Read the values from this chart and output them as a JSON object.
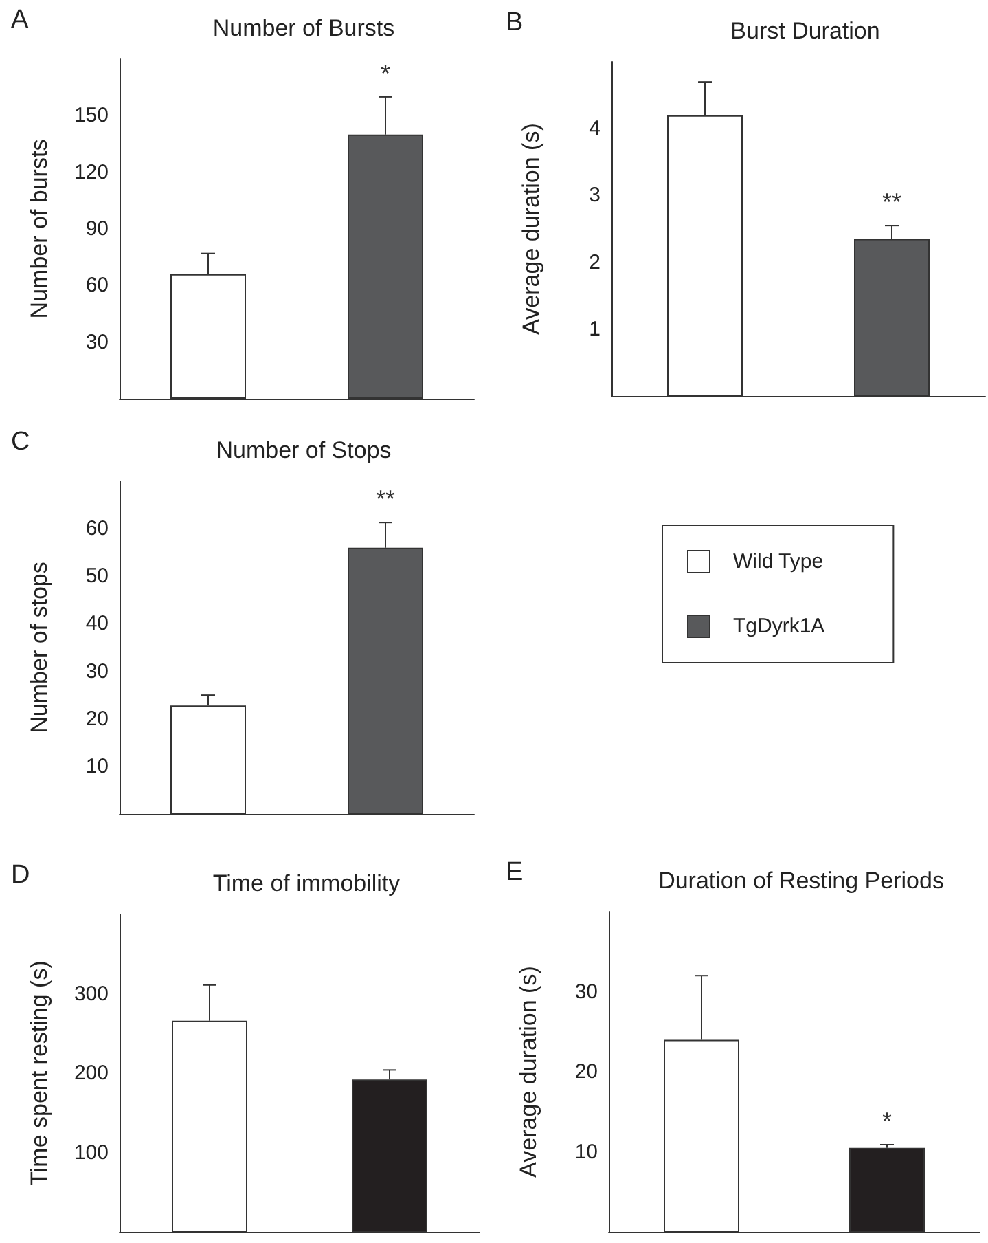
{
  "chart_data": [
    {
      "type": "bar",
      "title": "Number of Bursts",
      "ylabel": "Number of bursts",
      "annotations": [
        "A",
        "*"
      ],
      "categories": [
        null,
        null
      ],
      "values": [
        66,
        140
      ],
      "colors": [
        "#ffffff",
        "#58595b"
      ],
      "errors": [
        [
          66,
          77
        ],
        [
          140,
          160
        ]
      ],
      "ylim": [
        0,
        180
      ],
      "yticks": [
        30,
        60,
        90,
        120,
        150
      ]
    },
    {
      "type": "bar",
      "title": "Burst Duration",
      "ylabel": "Average duration (s)",
      "annotations": [
        "B",
        "**"
      ],
      "categories": [
        null,
        null
      ],
      "values": [
        4.2,
        2.35
      ],
      "colors": [
        "#ffffff",
        "#58595b"
      ],
      "errors": [
        [
          4.2,
          4.7
        ],
        [
          2.35,
          2.55
        ]
      ],
      "ylim": [
        0,
        5
      ],
      "yticks": [
        1,
        2,
        3,
        4
      ]
    },
    {
      "type": "bar",
      "title": "Number of Stops",
      "ylabel": "Number of stops",
      "annotations": [
        "C",
        "**"
      ],
      "categories": [
        null,
        null
      ],
      "legend": "right",
      "series": [
        {
          "name": "Wild Type",
          "color": "#ffffff",
          "values": [
            22.8,
            null
          ],
          "errors": [
            [
              22.8,
              25
            ],
            null
          ]
        },
        {
          "name": "TgDyrk1A",
          "color": "#58595b",
          "values": [
            null,
            56
          ],
          "errors": [
            null,
            [
              56,
              61.3
            ]
          ]
        }
      ],
      "ylim": [
        0,
        70
      ],
      "yticks": [
        10,
        20,
        30,
        40,
        50,
        60
      ]
    },
    {
      "type": "bar",
      "title": "Time of immobility",
      "ylabel": "Time spent resting (s)",
      "annotations": [
        "D"
      ],
      "categories": [
        null,
        null
      ],
      "values": [
        266,
        192
      ],
      "colors": [
        "#ffffff",
        "#231f20"
      ],
      "errors": [
        [
          266,
          311
        ],
        [
          192,
          204
        ]
      ],
      "ylim": [
        0,
        400
      ],
      "yticks": [
        100,
        200,
        300
      ]
    },
    {
      "type": "bar",
      "title": "Duration of Resting Periods",
      "ylabel": "Average duration (s)",
      "annotations": [
        "E",
        "*"
      ],
      "categories": [
        null,
        null
      ],
      "values": [
        24,
        10.5
      ],
      "colors": [
        "#ffffff",
        "#231f20"
      ],
      "errors": [
        [
          24,
          32
        ],
        [
          10.5,
          10.9
        ]
      ],
      "ylim": [
        0,
        40
      ],
      "yticks": [
        10,
        20,
        30
      ]
    }
  ]
}
